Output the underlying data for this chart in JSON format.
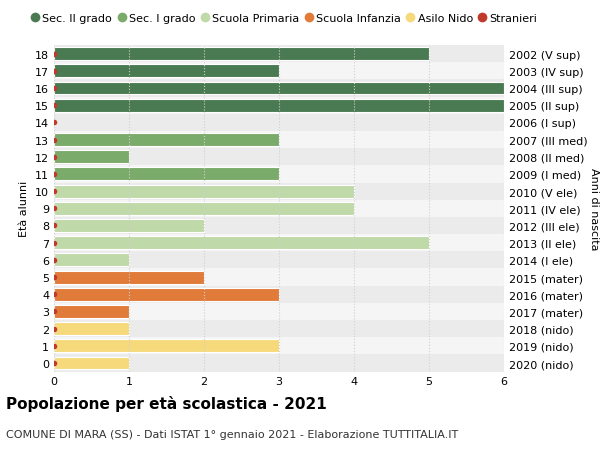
{
  "ages": [
    18,
    17,
    16,
    15,
    14,
    13,
    12,
    11,
    10,
    9,
    8,
    7,
    6,
    5,
    4,
    3,
    2,
    1,
    0
  ],
  "right_labels": [
    "2002 (V sup)",
    "2003 (IV sup)",
    "2004 (III sup)",
    "2005 (II sup)",
    "2006 (I sup)",
    "2007 (III med)",
    "2008 (II med)",
    "2009 (I med)",
    "2010 (V ele)",
    "2011 (IV ele)",
    "2012 (III ele)",
    "2013 (II ele)",
    "2014 (I ele)",
    "2015 (mater)",
    "2016 (mater)",
    "2017 (mater)",
    "2018 (nido)",
    "2019 (nido)",
    "2020 (nido)"
  ],
  "values": [
    5,
    3,
    6,
    6,
    0,
    3,
    1,
    3,
    4,
    4,
    2,
    5,
    1,
    2,
    3,
    1,
    1,
    3,
    1
  ],
  "colors": [
    "#4a7a52",
    "#4a7a52",
    "#4a7a52",
    "#4a7a52",
    "#4a7a52",
    "#7aab6a",
    "#7aab6a",
    "#7aab6a",
    "#c0d9a8",
    "#c0d9a8",
    "#c0d9a8",
    "#c0d9a8",
    "#c0d9a8",
    "#e07b3a",
    "#e07b3a",
    "#e07b3a",
    "#f5d97a",
    "#f5d97a",
    "#f5d97a"
  ],
  "zebra_color_dark": "#ebebeb",
  "zebra_color_light": "#f5f5f5",
  "bar_height": 0.75,
  "xlim": [
    0,
    6
  ],
  "xticks": [
    0,
    1,
    2,
    3,
    4,
    5,
    6
  ],
  "ylabel": "Età alunni",
  "right_ylabel": "Anni di nascita",
  "title": "Popolazione per età scolastica - 2021",
  "subtitle": "COMUNE DI MARA (SS) - Dati ISTAT 1° gennaio 2021 - Elaborazione TUTTITALIA.IT",
  "legend_labels": [
    "Sec. II grado",
    "Sec. I grado",
    "Scuola Primaria",
    "Scuola Infanzia",
    "Asilo Nido",
    "Stranieri"
  ],
  "legend_colors": [
    "#4a7a52",
    "#7aab6a",
    "#c0d9a8",
    "#e07b3a",
    "#f5d97a",
    "#c0392b"
  ],
  "background_color": "#ffffff",
  "plot_bg_color": "#f5f5f5",
  "grid_color": "#d0d0d0",
  "stranieri_color": "#c0392b",
  "title_fontsize": 11,
  "subtitle_fontsize": 8,
  "axis_label_fontsize": 8,
  "tick_fontsize": 8,
  "legend_fontsize": 8
}
